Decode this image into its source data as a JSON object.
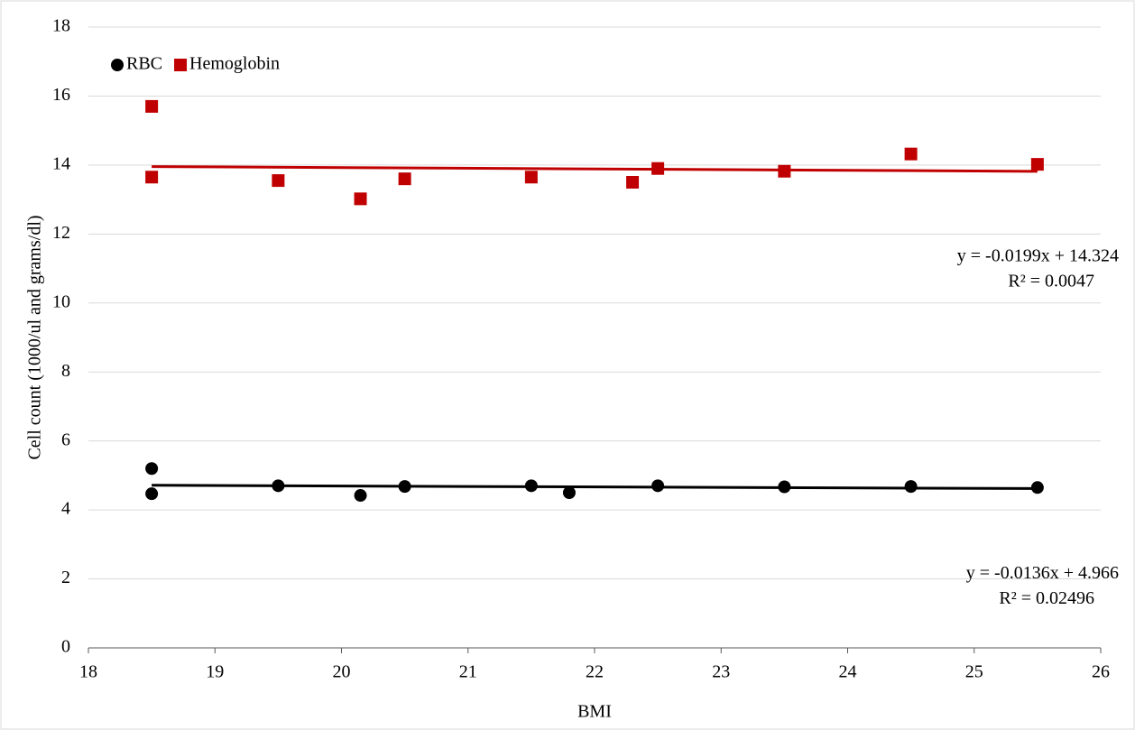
{
  "chart_data": {
    "type": "scatter",
    "x_label": "BMI",
    "y_label": "Cell count (1000/ul and grams/dl)",
    "xlim": [
      18,
      26
    ],
    "xticks": [
      18,
      19,
      20,
      21,
      22,
      23,
      24,
      25,
      26
    ],
    "ylim": [
      0,
      18
    ],
    "yticks": [
      0,
      2,
      4,
      6,
      8,
      10,
      12,
      14,
      16,
      18
    ],
    "grid": true,
    "legend": "top-left",
    "series": [
      {
        "name": "RBC",
        "color": "#000000",
        "marker": "circle",
        "x": [
          18.5,
          18.5,
          19.5,
          20.15,
          20.5,
          21.5,
          21.8,
          22.5,
          23.5,
          24.5,
          25.5
        ],
        "values": [
          5.2,
          4.47,
          4.7,
          4.42,
          4.68,
          4.7,
          4.5,
          4.7,
          4.67,
          4.68,
          4.65
        ],
        "trendline": {
          "slope": -0.0136,
          "intercept": 4.966,
          "equation": "y = -0.0136x + 4.966",
          "r_squared": 0.02496,
          "r_squared_label": "R² = 0.02496"
        }
      },
      {
        "name": "Hemoglobin",
        "color": "#c00000",
        "marker": "square",
        "x": [
          18.5,
          18.5,
          19.5,
          20.15,
          20.5,
          21.5,
          22.3,
          22.5,
          23.5,
          24.5,
          25.5
        ],
        "values": [
          15.7,
          13.65,
          13.55,
          13.02,
          13.6,
          13.65,
          13.5,
          13.9,
          13.82,
          14.32,
          14.02
        ],
        "trendline": {
          "slope": -0.0199,
          "intercept": 14.324,
          "equation": "y = -0.0199x + 14.324",
          "r_squared": 0.0047,
          "r_squared_label": "R² = 0.0047"
        }
      }
    ]
  }
}
